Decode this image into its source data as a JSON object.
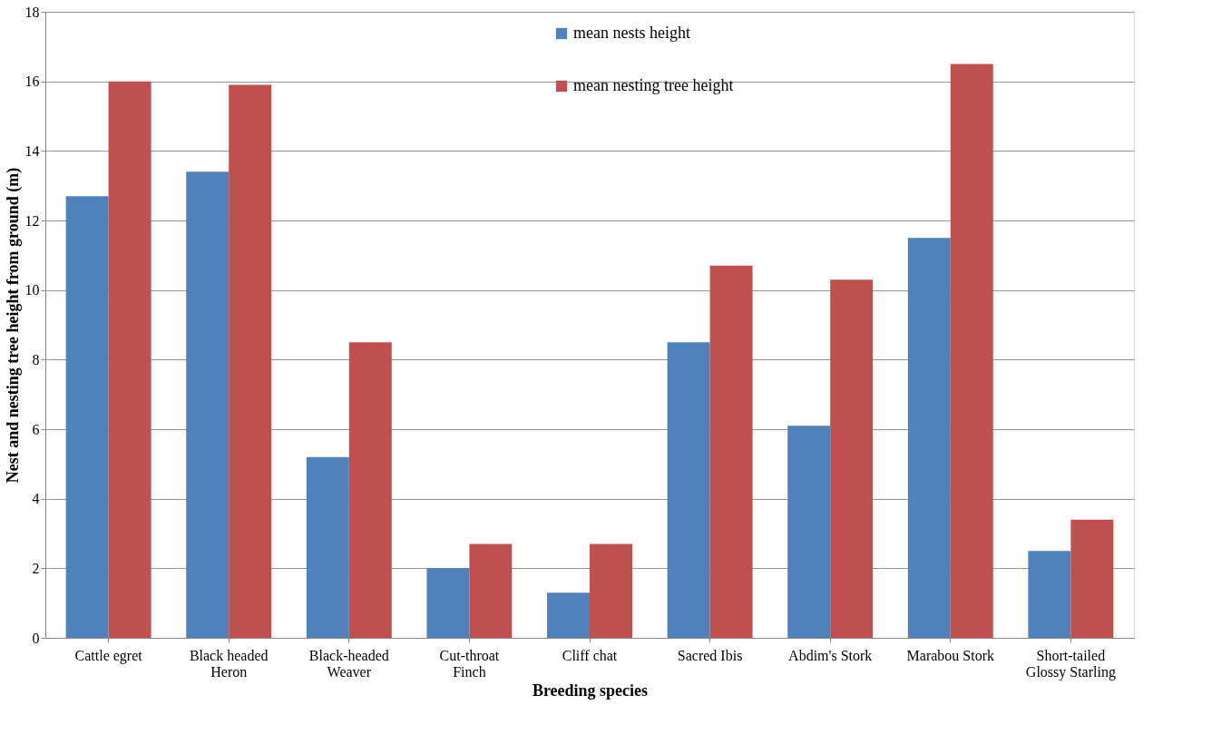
{
  "chart_data": {
    "type": "bar",
    "xlabel": "Breeding species",
    "ylabel": "Nest and nesting tree height from ground (m)",
    "categories": [
      "Cattle egret",
      "Black headed\nHeron",
      "Black-headed\nWeaver",
      "Cut-throat\nFinch",
      "Cliff chat",
      "Sacred Ibis",
      "Abdim's Stork",
      "Marabou Stork",
      "Short-tailed\nGlossy Starling"
    ],
    "series": [
      {
        "name": "mean nests height",
        "color": "#4f81bd",
        "values": [
          12.7,
          13.4,
          5.2,
          2.0,
          1.3,
          8.5,
          6.1,
          11.5,
          2.5
        ]
      },
      {
        "name": "mean nesting tree height",
        "color": "#c0504d",
        "values": [
          16.0,
          15.9,
          8.5,
          2.7,
          2.7,
          10.7,
          10.3,
          16.5,
          3.4
        ]
      }
    ],
    "ylim": [
      0,
      18
    ],
    "yticks": [
      0,
      2,
      4,
      6,
      8,
      10,
      12,
      14,
      16,
      18
    ],
    "grid": "y",
    "legend": "top"
  }
}
